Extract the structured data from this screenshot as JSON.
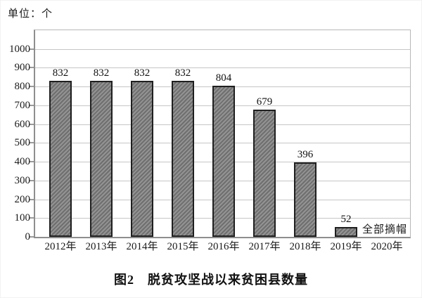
{
  "unit_label": "单位：个",
  "caption": "图2　脱贫攻坚战以来贫困县数量",
  "chart_data": {
    "type": "bar",
    "title": "图2　脱贫攻坚战以来贫困县数量",
    "unit": "单位：个",
    "categories": [
      "2012年",
      "2013年",
      "2014年",
      "2015年",
      "2016年",
      "2017年",
      "2018年",
      "2019年",
      "2020年"
    ],
    "values": [
      832,
      832,
      832,
      832,
      804,
      679,
      396,
      52,
      0
    ],
    "data_labels": [
      "832",
      "832",
      "832",
      "832",
      "804",
      "679",
      "396",
      "52",
      ""
    ],
    "annotation": {
      "text": "全部摘帽",
      "category": "2019年",
      "position": "right-of-bar"
    },
    "xlabel": "",
    "ylabel": "单位：个",
    "ylim": [
      0,
      1100
    ],
    "yticks": [
      0,
      100,
      200,
      300,
      400,
      500,
      600,
      700,
      800,
      900,
      1000
    ],
    "grid": true,
    "legend": "none",
    "colors": {
      "bar_fill": "#939393",
      "bar_hatch": "#6f6f6f",
      "bar_border": "#1f1f1f",
      "gridline": "#c6c6c6",
      "axis": "#8e8e8e",
      "frame": "#b8b8b8",
      "text": "#1a1a1a"
    }
  }
}
